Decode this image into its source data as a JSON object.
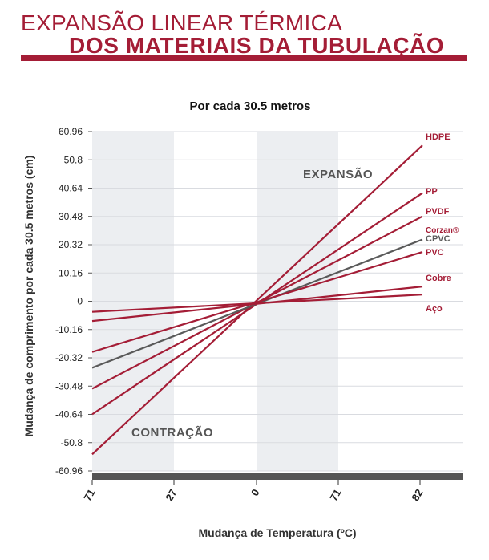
{
  "header": {
    "title_line1": "EXPANSÃO LINEAR TÉRMICA",
    "title_line2": "DOS MATERIAIS DA TUBULAÇÃO"
  },
  "colors": {
    "brand": "#a41d36",
    "cpvc": "#5a5a5a",
    "band": "#eceef1",
    "grid": "#d9dbe0",
    "axis": "#555555"
  },
  "chart_data": {
    "type": "line",
    "subtitle": "Por cada 30.5 metros",
    "xlabel": "Mudança de Temperatura (ºC)",
    "ylabel": "Mudança de comprimento por cada 30.5 metros (cm)",
    "x_ticks": [
      "71",
      "27",
      "0",
      "71",
      "82"
    ],
    "y_ticks": [
      "60.96",
      "50.8",
      "40.64",
      "30.48",
      "20.32",
      "10.16",
      "0",
      "-10.16",
      "-20.32",
      "-30.48",
      "-40.64",
      "-50.8",
      "-60.96"
    ],
    "ylim": [
      -60.96,
      60.96
    ],
    "grid": true,
    "shaded_bands": [
      "71 to 27",
      "0 to 71"
    ],
    "annotations": [
      "EXPANSÃO",
      "CONTRAÇÃO"
    ],
    "series": [
      {
        "name": "HDPE",
        "x_start": "71",
        "y_start": -55.0,
        "x_end": "82",
        "y_end": 56.0
      },
      {
        "name": "PP",
        "x_start": "71",
        "y_start": -40.6,
        "x_end": "82",
        "y_end": 38.9
      },
      {
        "name": "PVDF",
        "x_start": "71",
        "y_start": -31.4,
        "x_end": "82",
        "y_end": 30.5
      },
      {
        "name": "Corzan® CPVC",
        "x_start": "71",
        "y_start": -23.9,
        "x_end": "82",
        "y_end": 22.2
      },
      {
        "name": "PVC",
        "x_start": "71",
        "y_start": -18.2,
        "x_end": "82",
        "y_end": 17.7
      },
      {
        "name": "Cobre",
        "x_start": "71",
        "y_start": -7.1,
        "x_end": "82",
        "y_end": 5.3
      },
      {
        "name": "Aço",
        "x_start": "71",
        "y_start": -3.8,
        "x_end": "82",
        "y_end": 2.4
      }
    ]
  }
}
